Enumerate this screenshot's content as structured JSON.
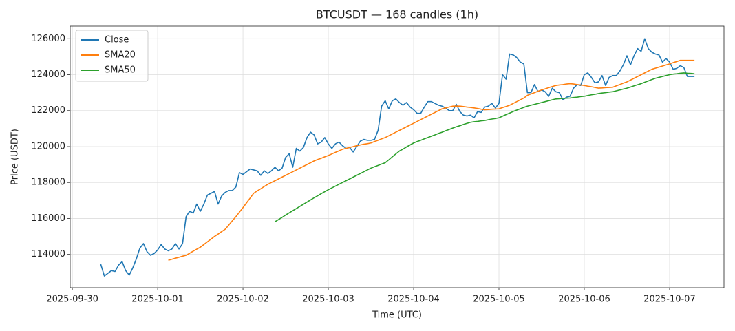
{
  "chart_data": {
    "type": "line",
    "title": "BTCUSDT — 168 candles (1h)",
    "x_label": "Time (UTC)",
    "y_label": "Price (USDT)",
    "grid": true,
    "legend": "upper left",
    "xlim": [
      "2025-09-29 23:24",
      "2025-10-07 15:18"
    ],
    "xticks": [
      "2025-09-30",
      "2025-10-01",
      "2025-10-02",
      "2025-10-03",
      "2025-10-04",
      "2025-10-05",
      "2025-10-06",
      "2025-10-07"
    ],
    "ylim": [
      112150,
      126700
    ],
    "yticks": [
      114000,
      116000,
      118000,
      120000,
      122000,
      124000,
      126000
    ],
    "x": [
      "2025-09-30 08:00",
      "2025-09-30 09:00",
      "2025-09-30 10:00",
      "2025-09-30 11:00",
      "2025-09-30 12:00",
      "2025-09-30 13:00",
      "2025-09-30 14:00",
      "2025-09-30 15:00",
      "2025-09-30 16:00",
      "2025-09-30 17:00",
      "2025-09-30 18:00",
      "2025-09-30 19:00",
      "2025-09-30 20:00",
      "2025-09-30 21:00",
      "2025-09-30 22:00",
      "2025-09-30 23:00",
      "2025-10-01 00:00",
      "2025-10-01 01:00",
      "2025-10-01 02:00",
      "2025-10-01 03:00",
      "2025-10-01 04:00",
      "2025-10-01 05:00",
      "2025-10-01 06:00",
      "2025-10-01 07:00",
      "2025-10-01 08:00",
      "2025-10-01 09:00",
      "2025-10-01 10:00",
      "2025-10-01 11:00",
      "2025-10-01 12:00",
      "2025-10-01 13:00",
      "2025-10-01 14:00",
      "2025-10-01 15:00",
      "2025-10-01 16:00",
      "2025-10-01 17:00",
      "2025-10-01 18:00",
      "2025-10-01 19:00",
      "2025-10-01 20:00",
      "2025-10-01 21:00",
      "2025-10-01 22:00",
      "2025-10-01 23:00",
      "2025-10-02 00:00",
      "2025-10-02 01:00",
      "2025-10-02 02:00",
      "2025-10-02 03:00",
      "2025-10-02 04:00",
      "2025-10-02 05:00",
      "2025-10-02 06:00",
      "2025-10-02 07:00",
      "2025-10-02 08:00",
      "2025-10-02 09:00",
      "2025-10-02 10:00",
      "2025-10-02 11:00",
      "2025-10-02 12:00",
      "2025-10-02 13:00",
      "2025-10-02 14:00",
      "2025-10-02 15:00",
      "2025-10-02 16:00",
      "2025-10-02 17:00",
      "2025-10-02 18:00",
      "2025-10-02 19:00",
      "2025-10-02 20:00",
      "2025-10-02 21:00",
      "2025-10-02 22:00",
      "2025-10-02 23:00",
      "2025-10-03 00:00",
      "2025-10-03 01:00",
      "2025-10-03 02:00",
      "2025-10-03 03:00",
      "2025-10-03 04:00",
      "2025-10-03 05:00",
      "2025-10-03 06:00",
      "2025-10-03 07:00",
      "2025-10-03 08:00",
      "2025-10-03 09:00",
      "2025-10-03 10:00",
      "2025-10-03 11:00",
      "2025-10-03 12:00",
      "2025-10-03 13:00",
      "2025-10-03 14:00",
      "2025-10-03 15:00",
      "2025-10-03 16:00",
      "2025-10-03 17:00",
      "2025-10-03 18:00",
      "2025-10-03 19:00",
      "2025-10-03 20:00",
      "2025-10-03 21:00",
      "2025-10-03 22:00",
      "2025-10-03 23:00",
      "2025-10-04 00:00",
      "2025-10-04 01:00",
      "2025-10-04 02:00",
      "2025-10-04 03:00",
      "2025-10-04 04:00",
      "2025-10-04 05:00",
      "2025-10-04 06:00",
      "2025-10-04 07:00",
      "2025-10-04 08:00",
      "2025-10-04 09:00",
      "2025-10-04 10:00",
      "2025-10-04 11:00",
      "2025-10-04 12:00",
      "2025-10-04 13:00",
      "2025-10-04 14:00",
      "2025-10-04 15:00",
      "2025-10-04 16:00",
      "2025-10-04 17:00",
      "2025-10-04 18:00",
      "2025-10-04 19:00",
      "2025-10-04 20:00",
      "2025-10-04 21:00",
      "2025-10-04 22:00",
      "2025-10-04 23:00",
      "2025-10-05 00:00",
      "2025-10-05 01:00",
      "2025-10-05 02:00",
      "2025-10-05 03:00",
      "2025-10-05 04:00",
      "2025-10-05 05:00",
      "2025-10-05 06:00",
      "2025-10-05 07:00",
      "2025-10-05 08:00",
      "2025-10-05 09:00",
      "2025-10-05 10:00",
      "2025-10-05 11:00",
      "2025-10-05 12:00",
      "2025-10-05 13:00",
      "2025-10-05 14:00",
      "2025-10-05 15:00",
      "2025-10-05 16:00",
      "2025-10-05 17:00",
      "2025-10-05 18:00",
      "2025-10-05 19:00",
      "2025-10-05 20:00",
      "2025-10-05 21:00",
      "2025-10-05 22:00",
      "2025-10-05 23:00",
      "2025-10-06 00:00",
      "2025-10-06 01:00",
      "2025-10-06 02:00",
      "2025-10-06 03:00",
      "2025-10-06 04:00",
      "2025-10-06 05:00",
      "2025-10-06 06:00",
      "2025-10-06 07:00",
      "2025-10-06 08:00",
      "2025-10-06 09:00",
      "2025-10-06 10:00",
      "2025-10-06 11:00",
      "2025-10-06 12:00",
      "2025-10-06 13:00",
      "2025-10-06 14:00",
      "2025-10-06 15:00",
      "2025-10-06 16:00",
      "2025-10-06 17:00",
      "2025-10-06 18:00",
      "2025-10-06 19:00",
      "2025-10-06 20:00",
      "2025-10-06 21:00",
      "2025-10-06 22:00",
      "2025-10-06 23:00",
      "2025-10-07 00:00",
      "2025-10-07 01:00",
      "2025-10-07 02:00",
      "2025-10-07 03:00",
      "2025-10-07 04:00",
      "2025-10-07 05:00",
      "2025-10-07 06:00",
      "2025-10-07 07:00"
    ],
    "series": [
      {
        "name": "Close",
        "color": "#1f77b4",
        "values": [
          113450,
          112800,
          112950,
          113100,
          113050,
          113400,
          113600,
          113100,
          112850,
          113250,
          113750,
          114350,
          114600,
          114150,
          113950,
          114050,
          114250,
          114550,
          114300,
          114200,
          114300,
          114600,
          114300,
          114600,
          116100,
          116400,
          116300,
          116800,
          116400,
          116800,
          117300,
          117400,
          117500,
          116800,
          117250,
          117450,
          117550,
          117550,
          117750,
          118550,
          118450,
          118600,
          118750,
          118700,
          118650,
          118400,
          118650,
          118500,
          118650,
          118850,
          118650,
          118800,
          119400,
          119600,
          118850,
          119900,
          119750,
          119950,
          120500,
          120800,
          120650,
          120150,
          120250,
          120500,
          120150,
          119900,
          120150,
          120250,
          120050,
          119900,
          119950,
          119700,
          120000,
          120300,
          120400,
          120350,
          120350,
          120400,
          120900,
          122250,
          122550,
          122100,
          122550,
          122650,
          122450,
          122300,
          122450,
          122200,
          122050,
          121850,
          121850,
          122200,
          122500,
          122500,
          122400,
          122300,
          122250,
          122150,
          122000,
          122000,
          122350,
          121950,
          121750,
          121700,
          121750,
          121600,
          121950,
          121900,
          122200,
          122250,
          122400,
          122150,
          122400,
          124000,
          123750,
          125150,
          125100,
          124950,
          124700,
          124600,
          123000,
          123000,
          123450,
          123050,
          123150,
          123050,
          122800,
          123250,
          123050,
          123000,
          122600,
          122750,
          122800,
          123250,
          123450,
          123400,
          124000,
          124100,
          123850,
          123550,
          123600,
          123950,
          123400,
          123850,
          123950,
          123950,
          124200,
          124550,
          125050,
          124550,
          125050,
          125450,
          125300,
          126000,
          125450,
          125250,
          125150,
          125100,
          124700,
          124900,
          124700,
          124300,
          124350,
          124500,
          124400,
          123900,
          123900,
          123900
        ]
      },
      {
        "name": "SMA20",
        "color": "#ff7f0e",
        "values": [
          null,
          null,
          null,
          null,
          null,
          null,
          null,
          null,
          null,
          null,
          null,
          null,
          null,
          null,
          null,
          null,
          null,
          null,
          null,
          113680,
          113730,
          113790,
          113840,
          113900,
          113950,
          114060,
          114180,
          114290,
          114400,
          114550,
          114700,
          114850,
          115000,
          115130,
          115270,
          115400,
          115630,
          115870,
          116100,
          116350,
          116600,
          116870,
          117130,
          117400,
          117530,
          117650,
          117780,
          117900,
          118000,
          118100,
          118200,
          118300,
          118400,
          118500,
          118600,
          118700,
          118800,
          118900,
          119000,
          119100,
          119200,
          119280,
          119350,
          119430,
          119500,
          119590,
          119680,
          119760,
          119850,
          119900,
          119950,
          120000,
          120050,
          120090,
          120130,
          120160,
          120200,
          120280,
          120350,
          120430,
          120500,
          120600,
          120700,
          120800,
          120900,
          121000,
          121100,
          121200,
          121300,
          121400,
          121500,
          121600,
          121700,
          121800,
          121900,
          122000,
          122100,
          122150,
          122200,
          122250,
          122250,
          122250,
          122230,
          122200,
          122180,
          122150,
          122120,
          122080,
          122050,
          122060,
          122080,
          122090,
          122100,
          122170,
          122230,
          122300,
          122400,
          122500,
          122600,
          122700,
          122850,
          122930,
          123000,
          123080,
          123150,
          123210,
          123280,
          123340,
          123400,
          123430,
          123450,
          123480,
          123500,
          123480,
          123450,
          123430,
          123400,
          123360,
          123330,
          123290,
          123250,
          123260,
          123280,
          123290,
          123300,
          123380,
          123450,
          123530,
          123600,
          123700,
          123800,
          123900,
          124000,
          124100,
          124200,
          124300,
          124360,
          124420,
          124480,
          124540,
          124600,
          124670,
          124730,
          124800,
          124800,
          124800,
          124800,
          124800
        ]
      },
      {
        "name": "SMA50",
        "color": "#2ca02c",
        "values": [
          null,
          null,
          null,
          null,
          null,
          null,
          null,
          null,
          null,
          null,
          null,
          null,
          null,
          null,
          null,
          null,
          null,
          null,
          null,
          null,
          null,
          null,
          null,
          null,
          null,
          null,
          null,
          null,
          null,
          null,
          null,
          null,
          null,
          null,
          null,
          null,
          null,
          null,
          null,
          null,
          null,
          null,
          null,
          null,
          null,
          null,
          null,
          null,
          null,
          115820,
          115940,
          116060,
          116190,
          116310,
          116430,
          116550,
          116670,
          116790,
          116910,
          117030,
          117150,
          117260,
          117380,
          117490,
          117600,
          117700,
          117800,
          117900,
          118000,
          118100,
          118200,
          118300,
          118400,
          118500,
          118600,
          118700,
          118800,
          118880,
          118950,
          119030,
          119100,
          119260,
          119430,
          119590,
          119750,
          119860,
          119980,
          120090,
          120200,
          120280,
          120350,
          120430,
          120500,
          120580,
          120650,
          120730,
          120800,
          120880,
          120950,
          121030,
          121100,
          121160,
          121230,
          121290,
          121350,
          121380,
          121400,
          121430,
          121450,
          121490,
          121530,
          121560,
          121600,
          121690,
          121780,
          121860,
          121950,
          122030,
          122100,
          122180,
          122250,
          122300,
          122350,
          122400,
          122450,
          122500,
          122550,
          122600,
          122650,
          122660,
          122680,
          122690,
          122700,
          122730,
          122750,
          122780,
          122800,
          122840,
          122880,
          122910,
          122950,
          122980,
          123000,
          123030,
          123050,
          123100,
          123150,
          123200,
          123250,
          123310,
          123380,
          123440,
          123500,
          123580,
          123650,
          123730,
          123800,
          123850,
          123900,
          123950,
          124000,
          124030,
          124050,
          124080,
          124100,
          124080,
          124070,
          124050
        ]
      }
    ]
  }
}
